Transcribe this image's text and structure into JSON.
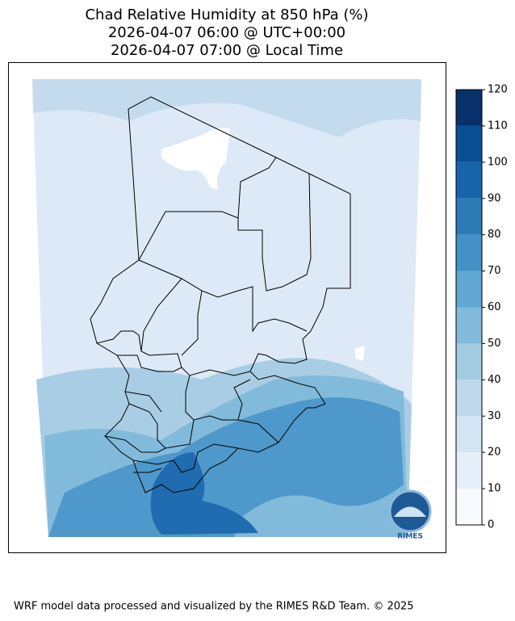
{
  "title": [
    "Chad Relative Humidity at 850 hPa (%)",
    "2026-04-07 06:00 @ UTC+00:00",
    "2026-04-07 07:00 @ Local Time"
  ],
  "colorbar": {
    "ticks": [
      0,
      10,
      20,
      30,
      40,
      50,
      60,
      70,
      80,
      90,
      100,
      110,
      120
    ],
    "colors": [
      "#f7fbff",
      "#e5eff9",
      "#d3e4f3",
      "#bed8ec",
      "#a3cce3",
      "#82badb",
      "#60a7d2",
      "#4391c6",
      "#2c7bb6",
      "#1764ab",
      "#0b4f94",
      "#08306b"
    ]
  },
  "logo": "RIMES",
  "footer": "WRF model data processed and visualized by the RIMES R&D Team. © 2025"
}
